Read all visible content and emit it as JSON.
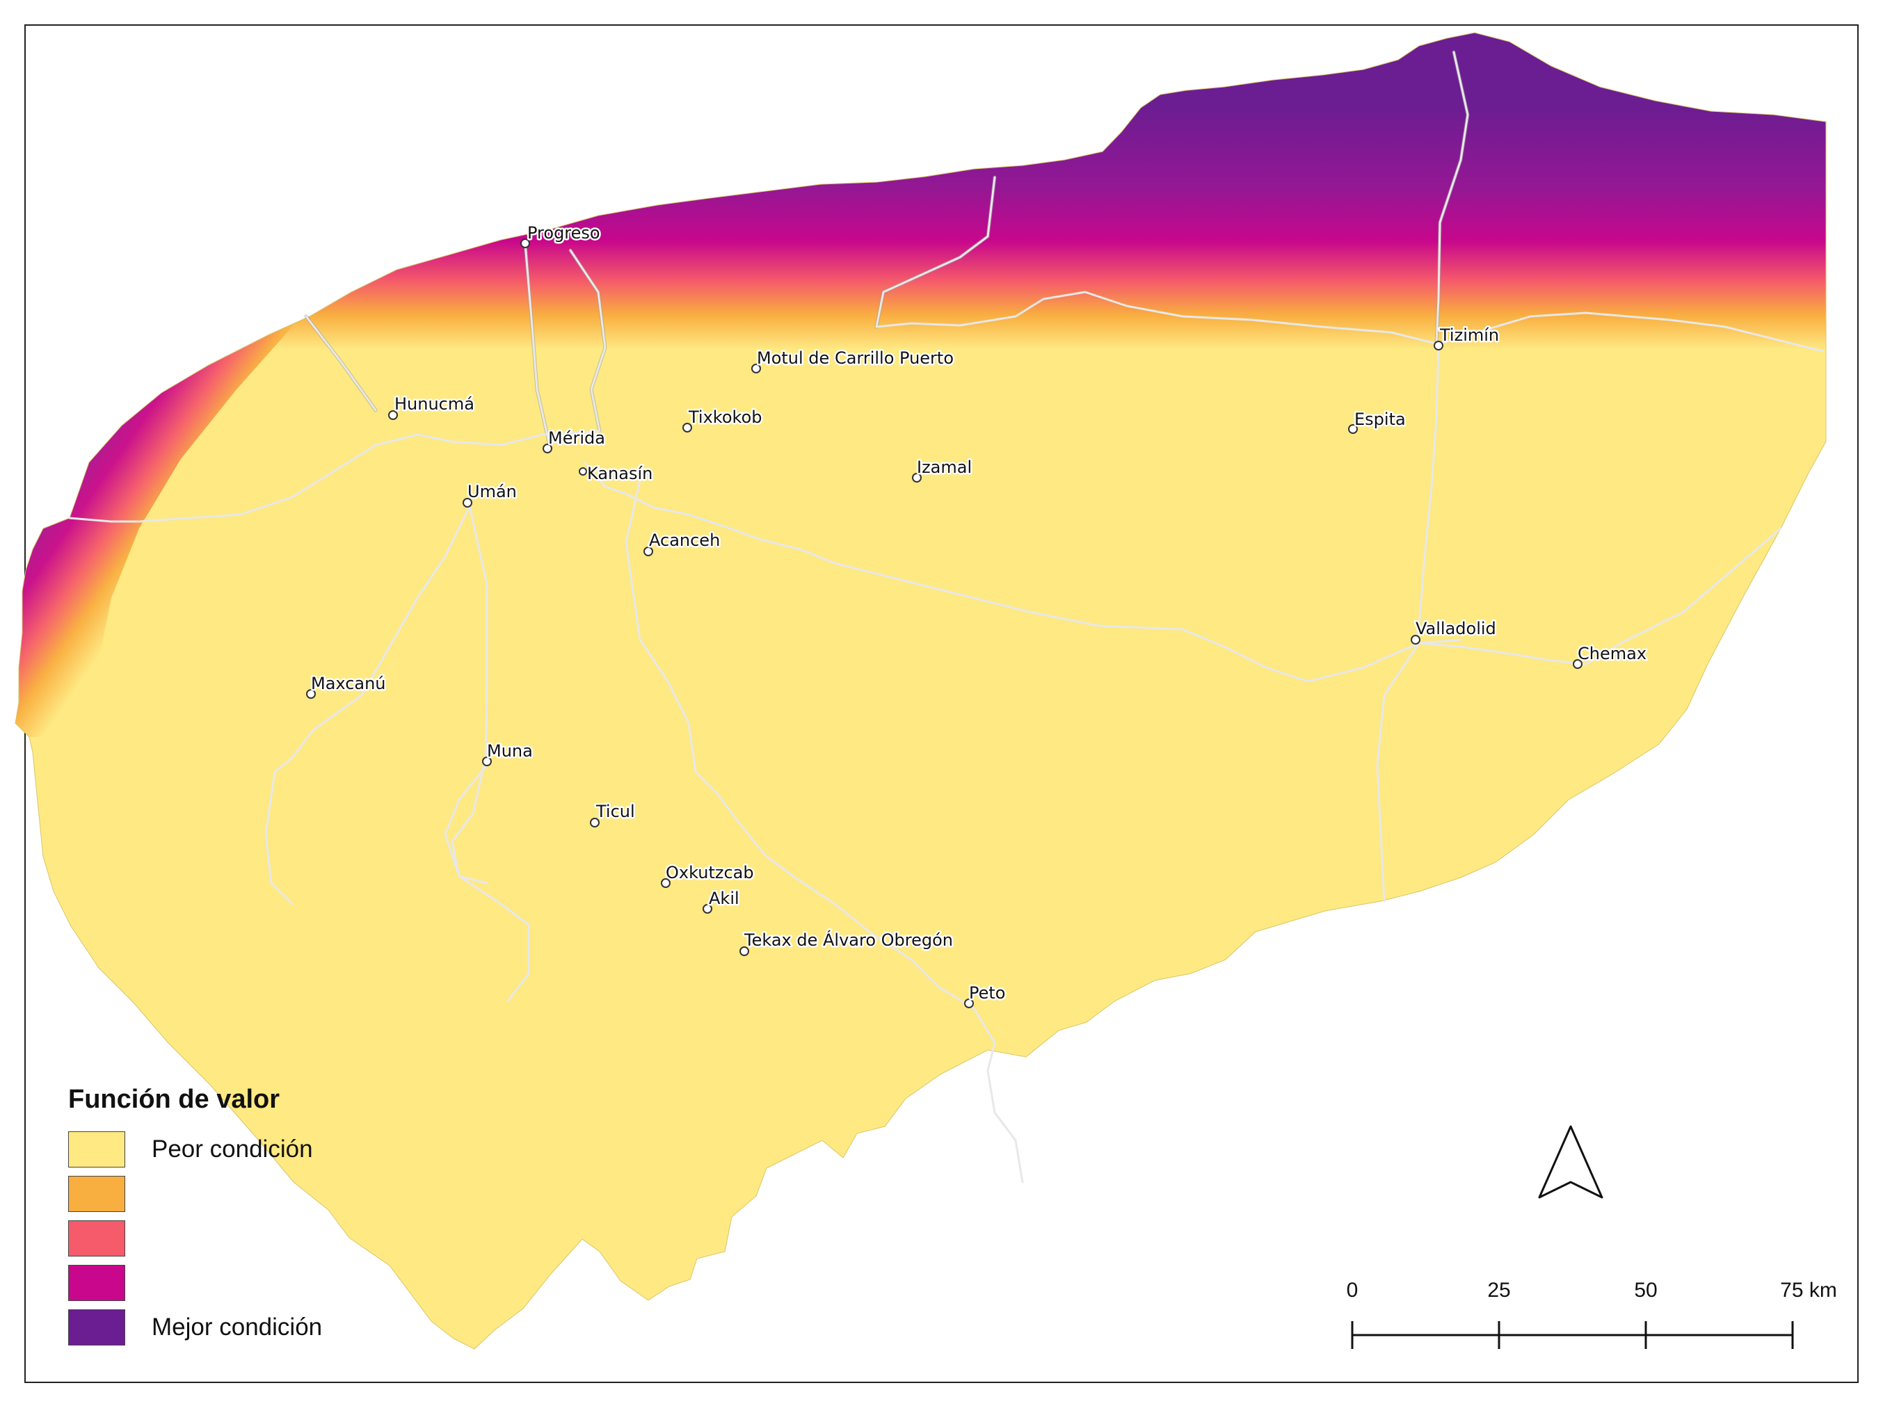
{
  "legend": {
    "title": "Función de valor",
    "items": [
      {
        "label": "Peor condición",
        "color": "#fee983"
      },
      {
        "label": "",
        "color": "#f9ae40"
      },
      {
        "label": "",
        "color": "#f55b6a"
      },
      {
        "label": "",
        "color": "#c8078c"
      },
      {
        "label": "Mejor condición",
        "color": "#6b1d92"
      }
    ]
  },
  "scale_bar": {
    "labels": [
      "0",
      "25",
      "50",
      "75 km"
    ]
  },
  "north_arrow": {
    "icon": "north-arrow-icon"
  },
  "cities": [
    {
      "name": "Progreso"
    },
    {
      "name": "Motul de Carrillo Puerto"
    },
    {
      "name": "Tizimín"
    },
    {
      "name": "Hunucmá"
    },
    {
      "name": "Tixkokob"
    },
    {
      "name": "Espita"
    },
    {
      "name": "Mérida"
    },
    {
      "name": "Izamal"
    },
    {
      "name": "Kanasín"
    },
    {
      "name": "Umán"
    },
    {
      "name": "Acanceh"
    },
    {
      "name": "Valladolid"
    },
    {
      "name": "Chemax"
    },
    {
      "name": "Maxcanú"
    },
    {
      "name": "Muna"
    },
    {
      "name": "Ticul"
    },
    {
      "name": "Oxkutzcab"
    },
    {
      "name": "Akil"
    },
    {
      "name": "Tekax de Álvaro Obregón"
    },
    {
      "name": "Peto"
    }
  ]
}
